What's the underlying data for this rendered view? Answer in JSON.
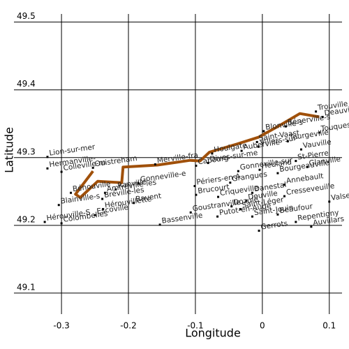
{
  "chart_data": {
    "type": "scatter",
    "x_label": "Longitude",
    "y_label": "Latitude",
    "xlim": [
      -0.371,
      0.119
    ],
    "ylim": [
      49.069,
      49.512
    ],
    "xticks": [
      -0.3,
      -0.2,
      -0.1,
      0,
      0.1
    ],
    "yticks": [
      49.1,
      49.2,
      49.3,
      49.4,
      49.5
    ],
    "grid": true,
    "point_color": "#000000",
    "labels": [
      "Lion-sur-mer",
      "Hermanville-",
      "Colleville-m",
      "Ouistreham",
      "Merville-fra",
      "Bénouville",
      "Ranville",
      "Amfréville-les",
      "Gonneville-e",
      "Bréville-les",
      "Blainville-s",
      "Hérouville-S",
      "Colombelles",
      "Hérouvillette",
      "Escoville",
      "Bavent",
      "Bassenville",
      "Cabourg",
      "Dives-sur-me",
      "Houlgate",
      "Auberville",
      "Périers-en-A",
      "Brucourt",
      "Grangues",
      "Gonneville-sur",
      "Heuland",
      "Criqueville",
      "Douville",
      "Danestal",
      "Dozulé",
      "Putot-en-Auge",
      "Goustranville",
      "Saint-Léger",
      "Saint-Vaast",
      "Villers-sur-",
      "St-Pierre",
      "Blonville-s",
      "Bénerville-s",
      "Trouville",
      "Deauville",
      "Touques",
      "Tourgeville",
      "Vauville",
      "Glanville",
      "Bourgeauville",
      "Annebault",
      "Cresseveuille",
      "Saint-Jouin",
      "Beaufour",
      "Gerrots",
      "Repentigny",
      "Auvillars",
      "Valsemé"
    ],
    "x": [
      -0.321,
      -0.321,
      -0.3,
      -0.253,
      -0.16,
      -0.286,
      -0.219,
      -0.235,
      -0.185,
      -0.239,
      -0.304,
      -0.325,
      -0.3,
      -0.238,
      -0.25,
      -0.192,
      -0.153,
      -0.099,
      -0.081,
      -0.075,
      -0.031,
      -0.101,
      -0.099,
      -0.048,
      -0.036,
      -0.004,
      -0.066,
      -0.024,
      -0.015,
      -0.046,
      -0.067,
      -0.107,
      -0.033,
      -0.008,
      -0.006,
      0.05,
      0.002,
      0.035,
      0.08,
      0.09,
      0.085,
      0.038,
      0.058,
      0.067,
      0.023,
      0.033,
      0.033,
      -0.015,
      0.023,
      -0.005,
      0.05,
      0.073,
      0.1
    ],
    "y": [
      49.301,
      49.284,
      49.279,
      49.285,
      49.29,
      49.248,
      49.253,
      49.248,
      49.262,
      49.239,
      49.23,
      49.205,
      49.203,
      49.224,
      49.215,
      49.233,
      49.201,
      49.288,
      49.292,
      49.306,
      49.31,
      49.258,
      49.245,
      49.263,
      49.28,
      49.282,
      49.242,
      49.236,
      49.248,
      49.228,
      49.213,
      49.219,
      49.224,
      49.323,
      49.316,
      49.295,
      49.339,
      49.346,
      49.368,
      49.36,
      49.337,
      49.324,
      49.312,
      49.286,
      49.277,
      49.26,
      49.243,
      49.213,
      49.216,
      49.192,
      49.205,
      49.198,
      49.235
    ],
    "route": {
      "color": "#a0500a",
      "x": [
        0.085,
        0.056,
        0.025,
        -0.006,
        -0.038,
        -0.079,
        -0.093,
        -0.108,
        -0.157,
        -0.208,
        -0.21,
        -0.246,
        -0.272,
        -0.279,
        -0.253
      ],
      "y": [
        49.36,
        49.365,
        49.347,
        49.33,
        49.32,
        49.308,
        49.295,
        49.296,
        49.289,
        49.286,
        49.263,
        49.265,
        49.241,
        49.246,
        49.28
      ]
    }
  }
}
